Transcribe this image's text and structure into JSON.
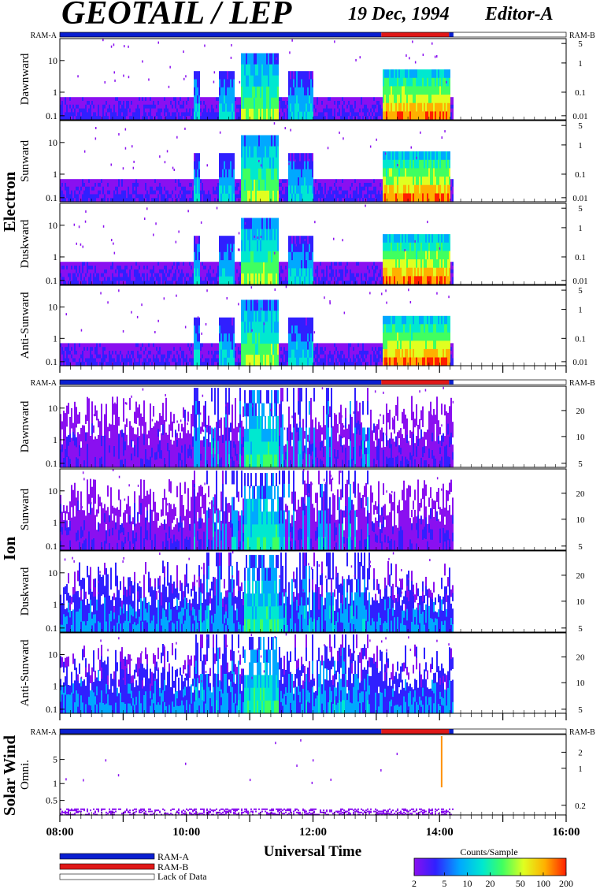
{
  "header": {
    "title": "GEOTAIL / LEP",
    "date": "19 Dec, 1994",
    "editor": "Editor-A"
  },
  "colors": {
    "ram_a": "#0a1fd0",
    "ram_b": "#e01818",
    "no_data": "#ffffff",
    "spectrogram_stops": [
      "#8a10f0",
      "#3020ff",
      "#00a8ff",
      "#00e8d0",
      "#40ff60",
      "#e0ff20",
      "#ffb000",
      "#ff2000"
    ]
  },
  "chart_data": {
    "type": "heatmap",
    "x_axis": {
      "label": "Universal Time",
      "range_hours": [
        8,
        16
      ],
      "tick_labels": [
        "08:00",
        "10:00",
        "12:00",
        "14:00",
        "16:00"
      ],
      "tick_hours": [
        8,
        10,
        12,
        14,
        16
      ]
    },
    "mode_bars": {
      "left_label": "RAM-A",
      "right_label": "RAM-B",
      "segments": [
        {
          "mode": "RAM-A",
          "start_hour": 8.0,
          "end_hour": 13.08
        },
        {
          "mode": "RAM-B",
          "start_hour": 13.08,
          "end_hour": 14.15
        },
        {
          "mode": "RAM-A",
          "start_hour": 14.15,
          "end_hour": 14.22
        },
        {
          "mode": "Lack of Data",
          "start_hour": 14.22,
          "end_hour": 16.0
        }
      ]
    },
    "groups": [
      {
        "name": "Electron",
        "panels": [
          {
            "label": "Dawnward",
            "left_ticks": [
              "10",
              "1",
              "0.1"
            ],
            "right_ticks": [
              "5",
              "1",
              "0.1",
              "0.01"
            ]
          },
          {
            "label": "Sunward",
            "left_ticks": [
              "10",
              "1",
              "0.1"
            ],
            "right_ticks": [
              "5",
              "1",
              "0.1",
              "0.01"
            ]
          },
          {
            "label": "Duskward",
            "left_ticks": [
              "10",
              "1",
              "0.1"
            ],
            "right_ticks": [
              "5",
              "1",
              "0.1",
              "0.01"
            ]
          },
          {
            "label": "Anti-Sunward",
            "left_ticks": [
              "10",
              "1",
              "0.1"
            ],
            "right_ticks": [
              "5",
              "1",
              "0.1",
              "0.01"
            ]
          }
        ]
      },
      {
        "name": "Ion",
        "panels": [
          {
            "label": "Dawnward",
            "left_ticks": [
              "10",
              "1",
              "0.1"
            ],
            "right_ticks": [
              "20",
              "10",
              "5"
            ]
          },
          {
            "label": "Sunward",
            "left_ticks": [
              "10",
              "1",
              "0.1"
            ],
            "right_ticks": [
              "20",
              "10",
              "5"
            ]
          },
          {
            "label": "Duskward",
            "left_ticks": [
              "10",
              "1",
              "0.1"
            ],
            "right_ticks": [
              "20",
              "10",
              "5"
            ]
          },
          {
            "label": "Anti-Sunward",
            "left_ticks": [
              "10",
              "1",
              "0.1"
            ],
            "right_ticks": [
              "20",
              "10",
              "5"
            ]
          }
        ]
      },
      {
        "name": "Solar Wind",
        "panels": [
          {
            "label": "Omni.",
            "left_ticks": [
              "5",
              "1",
              "0.5"
            ],
            "right_ticks": [
              "2",
              "1",
              "0.2"
            ]
          }
        ]
      }
    ],
    "colorbar": {
      "title": "Counts/Sample",
      "tick_labels": [
        "2",
        "5",
        "10",
        "20",
        "50",
        "100",
        "200"
      ],
      "tick_values": [
        2,
        5,
        10,
        20,
        50,
        100,
        200
      ],
      "scale": "log"
    },
    "legend": {
      "items": [
        {
          "label": "RAM-A",
          "color": "#0a1fd0"
        },
        {
          "label": "RAM-B",
          "color": "#e01818"
        },
        {
          "label": "Lack of Data",
          "color": "#ffffff"
        }
      ]
    }
  }
}
